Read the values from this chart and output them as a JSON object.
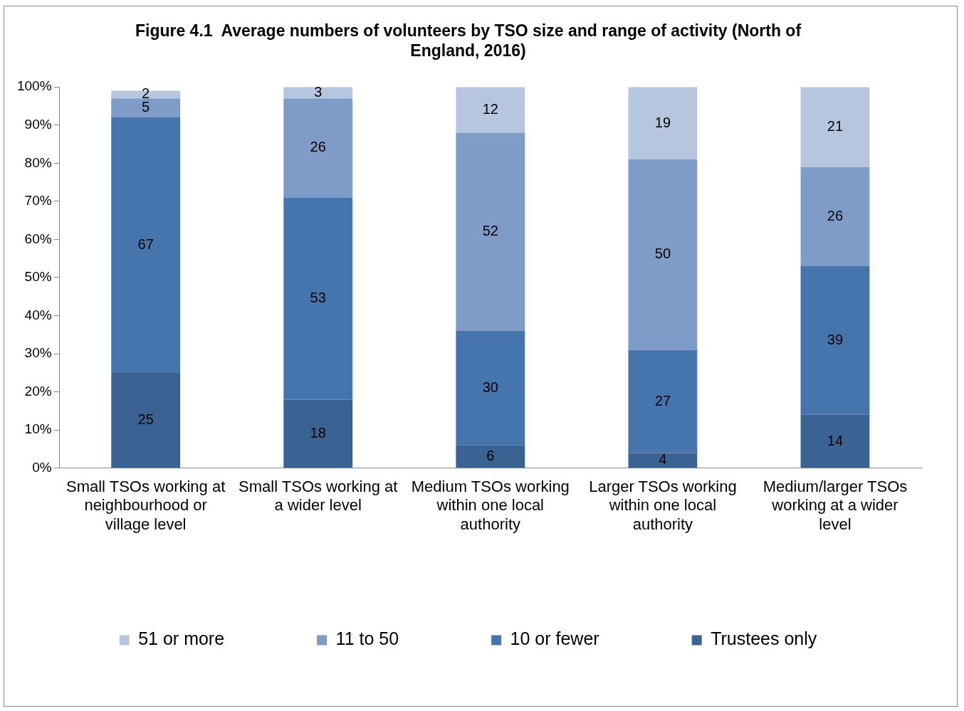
{
  "chart_data": {
    "type": "bar",
    "title": "Figure 4.1  Average numbers of volunteers by TSO size and range of activity (North of England, 2016)",
    "categories": [
      "Small TSOs working at neighbourhood or village level",
      "Small TSOs working at a wider level",
      "Medium TSOs working within one local authority",
      "Larger TSOs working within one local authority",
      "Medium/larger TSOs working at a wider level"
    ],
    "series": [
      {
        "name": "Trustees only",
        "color": "#3a6293",
        "values": [
          25,
          18,
          6,
          4,
          14
        ]
      },
      {
        "name": "10 or fewer",
        "color": "#4675ae",
        "values": [
          67,
          53,
          30,
          27,
          39
        ]
      },
      {
        "name": "11 to 50",
        "color": "#7f9cc8",
        "values": [
          5,
          26,
          52,
          50,
          26
        ]
      },
      {
        "name": "51 or more",
        "color": "#b7c6df",
        "values": [
          2,
          3,
          12,
          19,
          21
        ]
      }
    ],
    "stacked": true,
    "data_labels": true,
    "grid": false,
    "legend": "bottom",
    "ylim": [
      0,
      100
    ],
    "yticks": [
      {
        "value": 0,
        "label": "0%"
      },
      {
        "value": 10,
        "label": "10%"
      },
      {
        "value": 20,
        "label": "20%"
      },
      {
        "value": 30,
        "label": "30%"
      },
      {
        "value": 40,
        "label": "40%"
      },
      {
        "value": 50,
        "label": "50%"
      },
      {
        "value": 60,
        "label": "60%"
      },
      {
        "value": 70,
        "label": "70%"
      },
      {
        "value": 80,
        "label": "80%"
      },
      {
        "value": 90,
        "label": "90%"
      },
      {
        "value": 100,
        "label": "100%"
      }
    ]
  }
}
